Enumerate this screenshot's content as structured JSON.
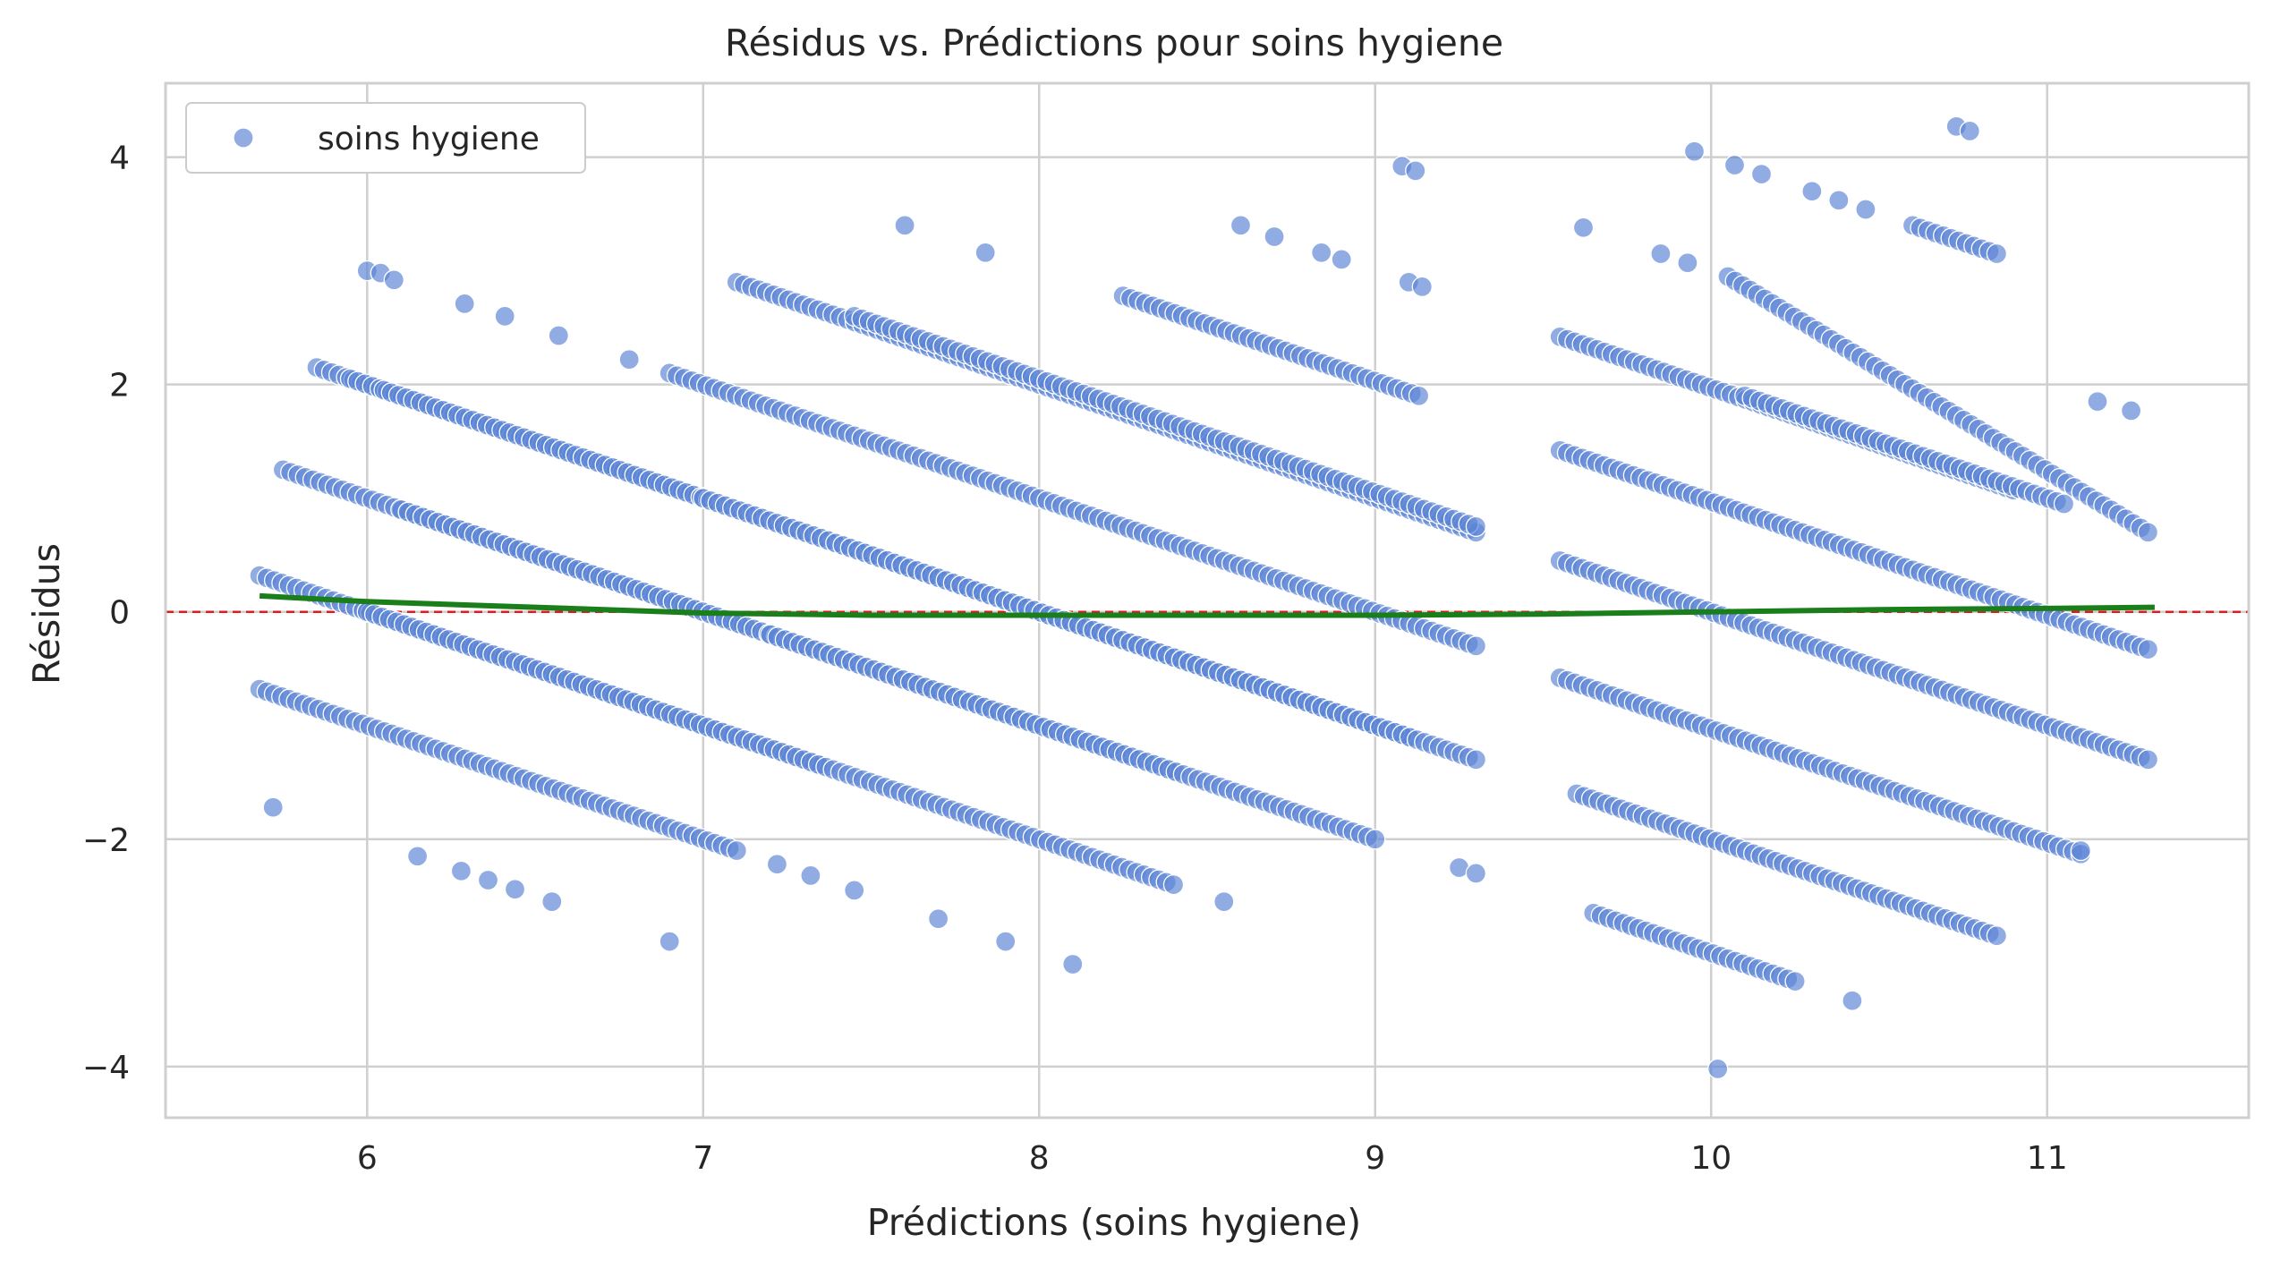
{
  "chart_data": {
    "type": "scatter",
    "title": "Résidus vs. Prédictions pour soins hygiene",
    "xlabel": "Prédictions (soins hygiene)",
    "ylabel": "Résidus",
    "xlim": [
      5.4,
      11.6
    ],
    "ylim": [
      -4.45,
      4.65
    ],
    "xticks": [
      6,
      7,
      8,
      9,
      10,
      11
    ],
    "yticks": [
      -4,
      -2,
      0,
      2,
      4
    ],
    "ytick_labels": [
      "−4",
      "−2",
      "0",
      "2",
      "4"
    ],
    "xtick_labels": [
      "6",
      "7",
      "8",
      "9",
      "10",
      "11"
    ],
    "grid": true,
    "legend": {
      "position": "top-left",
      "entries": [
        {
          "label": "soins hygiene",
          "color": "#5b84d6"
        }
      ]
    },
    "reference_line": {
      "y": 0,
      "color": "#e31a1c",
      "style": "dashed"
    },
    "colors": {
      "points": "#5b84d6",
      "trend": "#1a7f1a",
      "grid": "#cfcfcf",
      "spine": "#cfcfcf"
    },
    "series": [
      {
        "name": "soins hygiene",
        "bands": [
          {
            "x0": 5.68,
            "y0": 0.32,
            "x1": 7.35,
            "y1": -1.35
          },
          {
            "x0": 5.68,
            "y0": -0.68,
            "x1": 7.1,
            "y1": -2.1
          },
          {
            "x0": 5.75,
            "y0": 1.25,
            "x1": 8.2,
            "y1": -1.2
          },
          {
            "x0": 5.85,
            "y0": 2.15,
            "x1": 8.4,
            "y1": -0.4
          },
          {
            "x0": 5.95,
            "y0": 2.05,
            "x1": 9.0,
            "y1": -1.0
          },
          {
            "x0": 6.05,
            "y0": 1.95,
            "x1": 9.1,
            "y1": -1.1
          },
          {
            "x0": 6.1,
            "y0": 0.9,
            "x1": 8.4,
            "y1": -1.4
          },
          {
            "x0": 6.0,
            "y0": 0.0,
            "x1": 8.4,
            "y1": -2.4
          },
          {
            "x0": 6.9,
            "y0": 2.1,
            "x1": 9.3,
            "y1": -0.3
          },
          {
            "x0": 7.1,
            "y0": 2.9,
            "x1": 9.3,
            "y1": 0.7
          },
          {
            "x0": 7.0,
            "y0": 1.0,
            "x1": 9.3,
            "y1": -1.3
          },
          {
            "x0": 7.45,
            "y0": 2.6,
            "x1": 9.3,
            "y1": 0.75
          },
          {
            "x0": 7.2,
            "y0": -0.2,
            "x1": 9.0,
            "y1": -2.0
          },
          {
            "x0": 8.25,
            "y0": 2.78,
            "x1": 9.13,
            "y1": 1.9
          },
          {
            "x0": 9.55,
            "y0": 2.42,
            "x1": 10.9,
            "y1": 1.07
          },
          {
            "x0": 9.55,
            "y0": 1.42,
            "x1": 11.3,
            "y1": -0.33
          },
          {
            "x0": 9.55,
            "y0": 0.45,
            "x1": 11.3,
            "y1": -1.3
          },
          {
            "x0": 9.55,
            "y0": -0.58,
            "x1": 11.1,
            "y1": -2.13
          },
          {
            "x0": 9.6,
            "y0": -1.6,
            "x1": 10.85,
            "y1": -2.85
          },
          {
            "x0": 9.65,
            "y0": -2.65,
            "x1": 10.25,
            "y1": -3.25
          },
          {
            "x0": 10.05,
            "y0": 2.95,
            "x1": 11.3,
            "y1": 0.7
          },
          {
            "x0": 10.1,
            "y0": 1.9,
            "x1": 11.05,
            "y1": 0.95
          },
          {
            "x0": 10.6,
            "y0": 3.4,
            "x1": 10.85,
            "y1": 3.15
          }
        ],
        "outliers": [
          {
            "x": 5.72,
            "y": -1.72
          },
          {
            "x": 6.0,
            "y": 3.0
          },
          {
            "x": 6.04,
            "y": 2.98
          },
          {
            "x": 6.08,
            "y": 2.92
          },
          {
            "x": 6.29,
            "y": 2.71
          },
          {
            "x": 6.41,
            "y": 2.6
          },
          {
            "x": 6.57,
            "y": 2.43
          },
          {
            "x": 6.78,
            "y": 2.22
          },
          {
            "x": 6.15,
            "y": -2.15
          },
          {
            "x": 6.28,
            "y": -2.28
          },
          {
            "x": 6.36,
            "y": -2.36
          },
          {
            "x": 6.44,
            "y": -2.44
          },
          {
            "x": 6.55,
            "y": -2.55
          },
          {
            "x": 6.9,
            "y": -2.9
          },
          {
            "x": 7.22,
            "y": -2.22
          },
          {
            "x": 7.32,
            "y": -2.32
          },
          {
            "x": 7.45,
            "y": -2.45
          },
          {
            "x": 7.7,
            "y": -2.7
          },
          {
            "x": 7.9,
            "y": -2.9
          },
          {
            "x": 8.1,
            "y": -3.1
          },
          {
            "x": 8.55,
            "y": -2.55
          },
          {
            "x": 9.25,
            "y": -2.25
          },
          {
            "x": 9.3,
            "y": -2.3
          },
          {
            "x": 7.6,
            "y": 3.4
          },
          {
            "x": 7.84,
            "y": 3.16
          },
          {
            "x": 8.6,
            "y": 3.4
          },
          {
            "x": 8.7,
            "y": 3.3
          },
          {
            "x": 8.84,
            "y": 3.16
          },
          {
            "x": 8.9,
            "y": 3.1
          },
          {
            "x": 9.08,
            "y": 3.92
          },
          {
            "x": 9.12,
            "y": 3.88
          },
          {
            "x": 9.1,
            "y": 2.9
          },
          {
            "x": 9.14,
            "y": 2.86
          },
          {
            "x": 9.62,
            "y": 3.38
          },
          {
            "x": 9.95,
            "y": 4.05
          },
          {
            "x": 10.07,
            "y": 3.93
          },
          {
            "x": 10.15,
            "y": 3.85
          },
          {
            "x": 10.3,
            "y": 3.7
          },
          {
            "x": 10.38,
            "y": 3.62
          },
          {
            "x": 10.46,
            "y": 3.54
          },
          {
            "x": 9.85,
            "y": 3.15
          },
          {
            "x": 9.93,
            "y": 3.07
          },
          {
            "x": 10.73,
            "y": 4.27
          },
          {
            "x": 10.77,
            "y": 4.23
          },
          {
            "x": 11.15,
            "y": 1.85
          },
          {
            "x": 11.25,
            "y": 1.77
          },
          {
            "x": 10.42,
            "y": -3.42
          },
          {
            "x": 10.02,
            "y": -4.02
          },
          {
            "x": 11.1,
            "y": -2.1
          }
        ]
      }
    ],
    "trend": {
      "name": "lowess",
      "x": [
        5.68,
        6.0,
        6.5,
        7.0,
        7.5,
        8.0,
        8.5,
        9.0,
        9.5,
        10.0,
        10.5,
        11.0,
        11.32
      ],
      "y": [
        0.14,
        0.09,
        0.04,
        -0.01,
        -0.03,
        -0.03,
        -0.03,
        -0.03,
        -0.02,
        0.0,
        0.02,
        0.03,
        0.04
      ]
    }
  }
}
